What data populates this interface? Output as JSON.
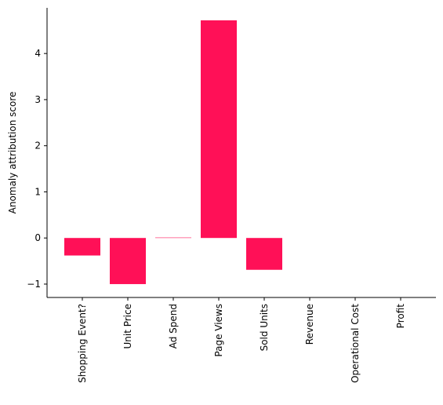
{
  "chart_data": {
    "type": "bar",
    "categories": [
      "Shopping Event?",
      "Unit Price",
      "Ad Spend",
      "Page Views",
      "Sold Units",
      "Revenue",
      "Operational Cost",
      "Profit"
    ],
    "values": [
      -0.38,
      -1.0,
      0.01,
      4.72,
      -0.69,
      0,
      0,
      0
    ],
    "ylabel": "Anomaly attribution score",
    "xlabel": "",
    "yticks": [
      -1,
      0,
      1,
      2,
      3,
      4
    ],
    "ytick_labels": [
      "−1",
      "0",
      "1",
      "2",
      "3",
      "4"
    ],
    "ylim": [
      -1.29,
      4.99
    ],
    "grid": false,
    "bar_color": "#ff1057"
  }
}
